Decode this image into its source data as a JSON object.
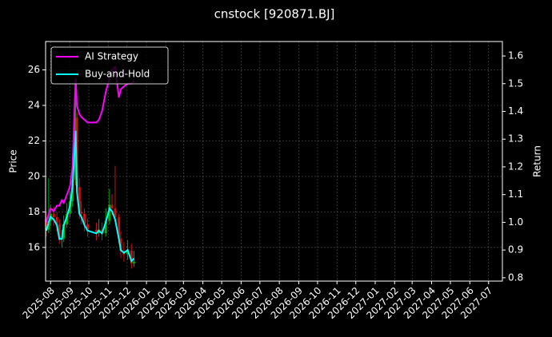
{
  "chart_data": {
    "type": "candlestick",
    "title": "cnstock [920871.BJ]",
    "ylabel": "Price",
    "y2label": "Return",
    "x": [
      "2025-07-25",
      "2025-07-29",
      "2025-08-01",
      "2025-08-06",
      "2025-08-11",
      "2025-08-15",
      "2025-08-19",
      "2025-08-22",
      "2025-08-27",
      "2025-09-01",
      "2025-09-05",
      "2025-09-10",
      "2025-09-12",
      "2025-09-16",
      "2025-09-19",
      "2025-09-24",
      "2025-09-29",
      "2025-10-13",
      "2025-10-17",
      "2025-10-22",
      "2025-10-28",
      "2025-11-03",
      "2025-11-07",
      "2025-11-12",
      "2025-11-18",
      "2025-11-21",
      "2025-11-26",
      "2025-12-02",
      "2025-12-08",
      "2025-12-12"
    ],
    "open": [
      17.6,
      17.0,
      17.5,
      17.9,
      17.7,
      17.3,
      16.5,
      16.5,
      17.3,
      17.9,
      18.6,
      19.8,
      23.3,
      19.4,
      18.0,
      17.9,
      17.3,
      17.0,
      16.8,
      17.0,
      16.8,
      17.5,
      18.4,
      18.2,
      17.7,
      16.5,
      15.8,
      15.6,
      15.8,
      15.1
    ],
    "high": [
      18.0,
      19.9,
      18.4,
      18.3,
      18.0,
      17.6,
      17.0,
      17.8,
      18.5,
      19.2,
      21.3,
      24.6,
      23.6,
      19.9,
      18.6,
      18.2,
      17.6,
      17.4,
      17.6,
      17.4,
      18.2,
      19.3,
      19.0,
      20.6,
      17.9,
      16.9,
      16.3,
      16.4,
      16.2,
      15.8
    ],
    "low": [
      16.6,
      16.8,
      17.2,
      17.2,
      16.9,
      16.2,
      16.0,
      16.3,
      17.1,
      17.7,
      18.3,
      19.5,
      19.0,
      17.6,
      17.3,
      16.9,
      16.6,
      16.4,
      16.6,
      16.4,
      16.6,
      17.3,
      17.8,
      17.4,
      16.2,
      15.4,
      15.2,
      15.3,
      14.8,
      14.9
    ],
    "close": [
      17.0,
      17.5,
      17.9,
      17.7,
      17.3,
      16.5,
      16.5,
      17.3,
      17.9,
      18.6,
      19.8,
      23.3,
      19.4,
      18.0,
      17.9,
      17.3,
      17.0,
      16.8,
      17.0,
      16.8,
      17.5,
      18.4,
      18.2,
      17.7,
      16.5,
      15.8,
      15.6,
      15.8,
      15.1,
      15.2
    ],
    "up_color": "#00b000",
    "down_color": "#d01010",
    "series": [
      {
        "name": "AI Strategy",
        "color": "#ff00ff",
        "axis": "y2",
        "values": [
          1.0,
          1.03,
          1.05,
          1.04,
          1.06,
          1.06,
          1.08,
          1.07,
          1.1,
          1.13,
          1.2,
          1.52,
          1.42,
          1.39,
          1.38,
          1.37,
          1.36,
          1.36,
          1.37,
          1.4,
          1.47,
          1.52,
          1.55,
          1.56,
          1.45,
          1.48,
          1.49,
          1.5,
          1.5,
          1.51
        ]
      },
      {
        "name": "Buy-and-Hold",
        "color": "#00ffff",
        "axis": "y2",
        "values": [
          0.97,
          1.0,
          1.02,
          1.01,
          0.99,
          0.94,
          0.94,
          0.99,
          1.02,
          1.06,
          1.13,
          1.33,
          1.11,
          1.03,
          1.02,
          0.99,
          0.97,
          0.96,
          0.97,
          0.96,
          1.0,
          1.05,
          1.04,
          1.01,
          0.94,
          0.9,
          0.89,
          0.9,
          0.86,
          0.87
        ]
      }
    ],
    "xlim": [
      "2025-07-24",
      "2027-07-23"
    ],
    "xticks": [
      "2025-08",
      "2025-09",
      "2025-10",
      "2025-11",
      "2025-12",
      "2026-01",
      "2026-02",
      "2026-03",
      "2026-04",
      "2026-05",
      "2026-06",
      "2026-07",
      "2026-08",
      "2026-09",
      "2026-10",
      "2026-11",
      "2026-12",
      "2027-01",
      "2027-02",
      "2027-03",
      "2027-04",
      "2027-05",
      "2027-06",
      "2027-07"
    ],
    "ylim": [
      14.1,
      27.6
    ],
    "yticks": [
      16,
      18,
      20,
      22,
      24,
      26
    ],
    "y2lim": [
      0.788,
      1.652
    ],
    "y2ticks": [
      0.8,
      0.9,
      {
        "value": 1,
        "label": "1.0"
      },
      1.1,
      1.2,
      1.3,
      1.4,
      1.5,
      1.6
    ],
    "grid": true,
    "legend": "upper left"
  }
}
